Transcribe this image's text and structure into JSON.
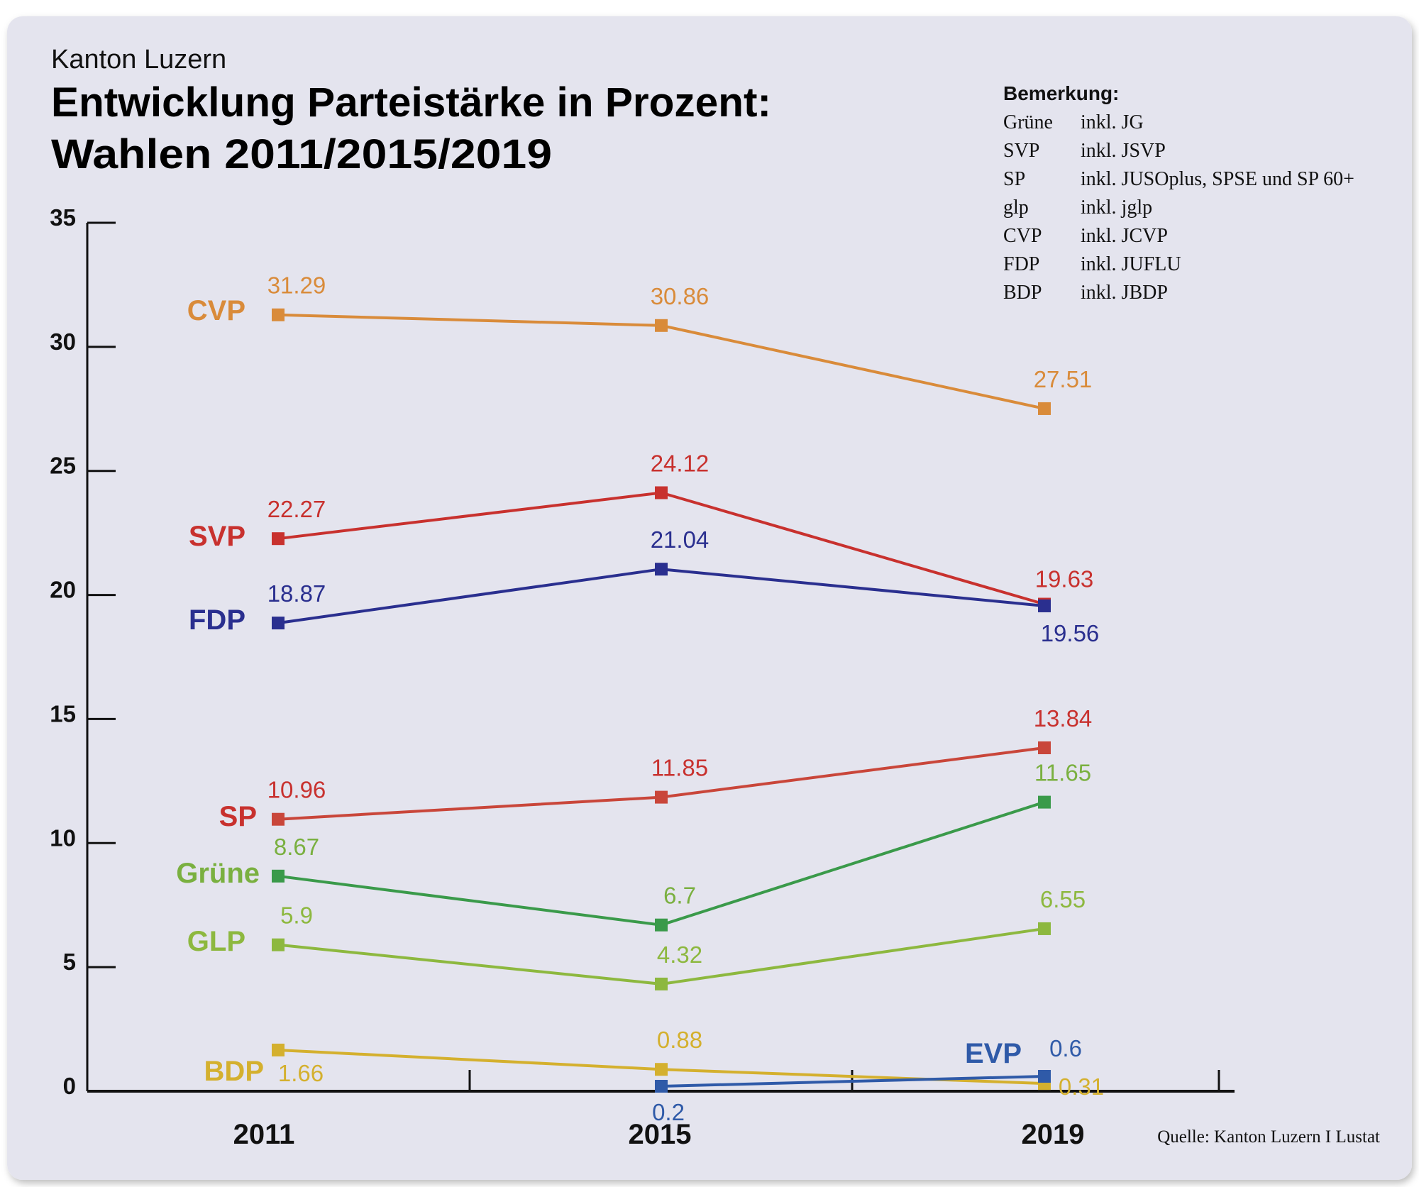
{
  "header": {
    "subtitle": "Kanton Luzern",
    "title_line1": "Entwicklung Parteistärke in Prozent:",
    "title_line2": "Wahlen 2011/2015/2019"
  },
  "notes": {
    "heading": "Bemerkung:",
    "rows": [
      {
        "party": "Grüne",
        "text": "inkl. JG"
      },
      {
        "party": "SVP",
        "text": "inkl. JSVP"
      },
      {
        "party": "SP",
        "text": "inkl. JUSOplus, SPSE und SP 60+"
      },
      {
        "party": "glp",
        "text": "inkl. jglp"
      },
      {
        "party": "CVP",
        "text": "inkl. JCVP"
      },
      {
        "party": "FDP",
        "text": "inkl. JUFLU"
      },
      {
        "party": "BDP",
        "text": "inkl. JBDP"
      }
    ]
  },
  "source": "Quelle: Kanton Luzern I Lustat",
  "colors": {
    "background": "#e4e4ee",
    "axis": "#111111"
  },
  "chart_data": {
    "type": "line",
    "title": "Entwicklung Parteistärke in Prozent: Wahlen 2011/2015/2019",
    "xlabel": "",
    "ylabel": "",
    "categories": [
      "2011",
      "2015",
      "2019"
    ],
    "ylim": [
      0,
      35
    ],
    "yticks": [
      0,
      5,
      10,
      15,
      20,
      25,
      30,
      35
    ],
    "grid": false,
    "legend": "inline labels at left of series",
    "series": [
      {
        "name": "CVP",
        "values": [
          31.29,
          30.86,
          27.51
        ],
        "labels": [
          "31.29",
          "30.86",
          "27.51"
        ],
        "color": "#d98b3a",
        "label_color": "#d98b3a"
      },
      {
        "name": "SVP",
        "values": [
          22.27,
          24.12,
          19.63
        ],
        "labels": [
          "22.27",
          "24.12",
          "19.63"
        ],
        "color": "#c8312e",
        "label_color": "#c8312e"
      },
      {
        "name": "FDP",
        "values": [
          18.87,
          21.04,
          19.56
        ],
        "labels": [
          "18.87",
          "21.04",
          "19.56"
        ],
        "color": "#2a2f8f",
        "label_color": "#2a2f8f"
      },
      {
        "name": "SP",
        "values": [
          10.96,
          11.85,
          13.84
        ],
        "labels": [
          "10.96",
          "11.85",
          "13.84"
        ],
        "color": "#c9463a",
        "label_color": "#c8312e"
      },
      {
        "name": "Grüne",
        "values": [
          8.67,
          6.7,
          11.65
        ],
        "labels": [
          "8.67",
          "6.7",
          "11.65"
        ],
        "color": "#3a9a4a",
        "label_color": "#7ab040"
      },
      {
        "name": "GLP",
        "values": [
          5.9,
          4.32,
          6.55
        ],
        "labels": [
          "5.9",
          "4.32",
          "6.55"
        ],
        "color": "#8db83f",
        "label_color": "#8db83f"
      },
      {
        "name": "BDP",
        "values": [
          1.66,
          0.88,
          0.31
        ],
        "labels": [
          "1.66",
          "0.88",
          "0.31"
        ],
        "color": "#d4b02e",
        "label_color": "#d4b02e"
      },
      {
        "name": "EVP",
        "values": [
          null,
          0.2,
          0.6
        ],
        "labels": [
          null,
          "0.2",
          "0.6"
        ],
        "color": "#2f5aa8",
        "label_color": "#2f5aa8"
      }
    ]
  }
}
